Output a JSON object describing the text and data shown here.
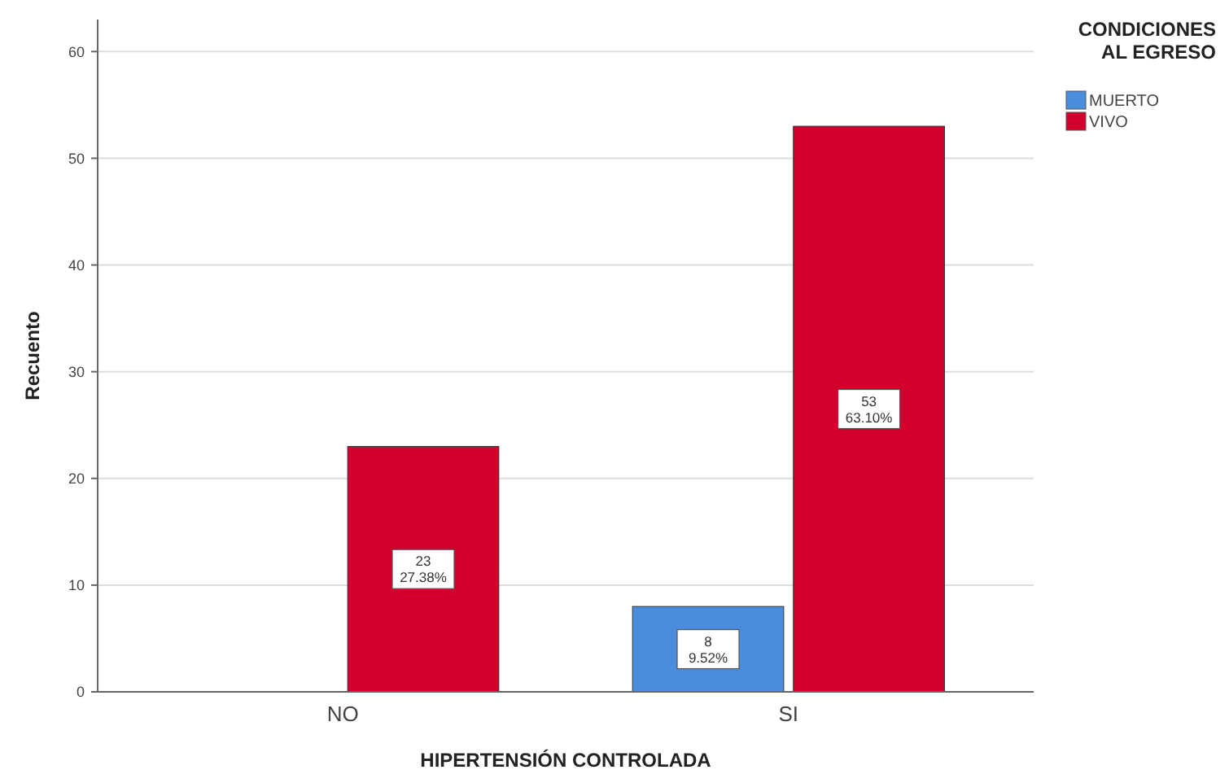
{
  "chart_data": {
    "type": "bar",
    "xlabel": "HIPERTENSIÓN CONTROLADA",
    "ylabel": "Recuento",
    "legend_title": "CONDICIONES AL EGRESO",
    "categories": [
      "NO",
      "SI"
    ],
    "series": [
      {
        "name": "MUERTO",
        "color": "#4a8ddc",
        "values": [
          null,
          8
        ],
        "value_labels": [
          null,
          "8\n9.52%"
        ]
      },
      {
        "name": "VIVO",
        "color": "#d2002c",
        "values": [
          23,
          53
        ],
        "value_labels": [
          "23\n27.38%",
          "53\n63.10%"
        ]
      }
    ],
    "ylim": [
      0,
      63
    ],
    "yticks": [
      0,
      10,
      20,
      30,
      40,
      50,
      60
    ],
    "grid": "y",
    "legend": "top right"
  }
}
